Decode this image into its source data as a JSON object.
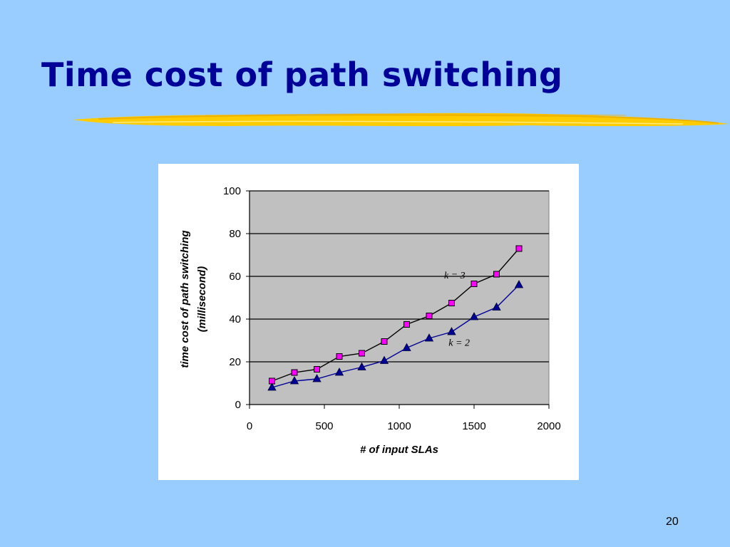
{
  "slide": {
    "title": "Time cost of path switching",
    "page_number": "20"
  },
  "colors": {
    "background": "#99ccff",
    "title": "#000099",
    "plot_area": "#c0c0c0",
    "underline": "#ffcc00",
    "series_k3_marker": "#ff00ff",
    "series_k2_marker": "#000099"
  },
  "chart_data": {
    "type": "line",
    "xlabel": "# of input SLAs",
    "ylabel": "time cost of path switching (millisecond)",
    "ylabel_lines": [
      "time cost of path switching",
      "(millisecond)"
    ],
    "xlim": [
      0,
      2000
    ],
    "ylim": [
      0,
      100
    ],
    "xticks": [
      0,
      500,
      1000,
      1500,
      2000
    ],
    "yticks": [
      0,
      20,
      40,
      60,
      80,
      100
    ],
    "grid": "horizontal",
    "series": [
      {
        "name": "k = 3",
        "marker": "square",
        "x": [
          150,
          300,
          450,
          600,
          750,
          900,
          1050,
          1200,
          1350,
          1500,
          1650,
          1800
        ],
        "y": [
          11,
          15,
          16.5,
          22.5,
          24,
          29.5,
          37.5,
          41.5,
          47.5,
          56.5,
          61,
          73
        ]
      },
      {
        "name": "k = 2",
        "marker": "triangle",
        "x": [
          150,
          300,
          450,
          600,
          750,
          900,
          1050,
          1200,
          1350,
          1500,
          1650,
          1800
        ],
        "y": [
          8,
          11,
          12,
          15,
          17.5,
          20.5,
          26.5,
          31,
          34,
          41,
          45.5,
          56
        ]
      }
    ]
  }
}
